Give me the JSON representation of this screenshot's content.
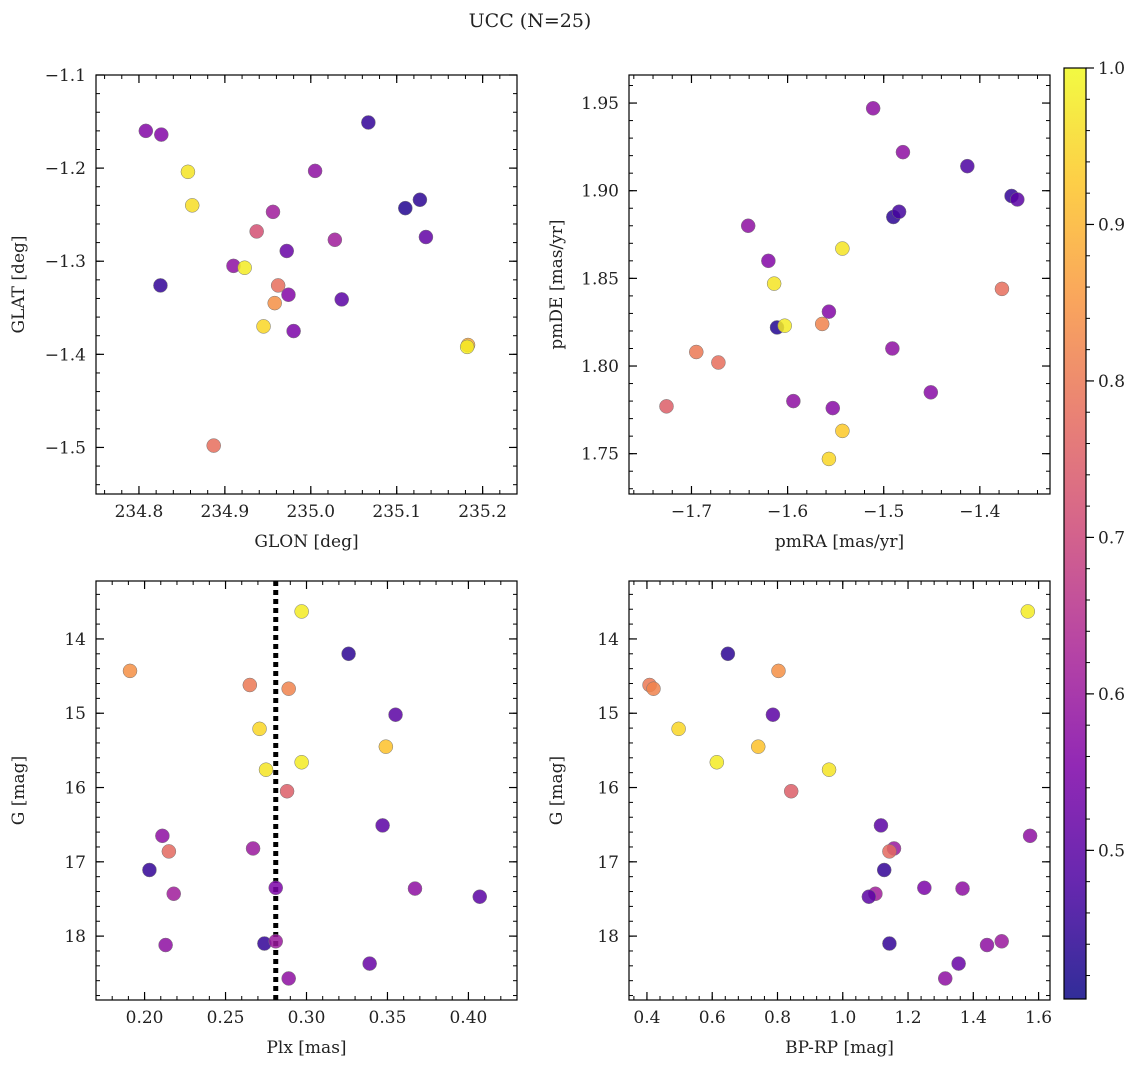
{
  "figure": {
    "title": "UCC (N=25)"
  },
  "colorbar": {
    "range": [
      0.405,
      1.0
    ],
    "ticks": [
      0.5,
      0.6,
      0.7,
      0.8,
      0.9,
      1.0
    ],
    "tick_labels": [
      "0.5",
      "0.6",
      "0.7",
      "0.8",
      "0.9",
      "1.0"
    ],
    "colormap": "plasma"
  },
  "chart_data": [
    {
      "type": "scatter",
      "id": "glon-glat",
      "xlabel": "GLON [deg]",
      "ylabel": "GLAT [deg]",
      "xlim": [
        234.75,
        235.24
      ],
      "ylim": [
        -1.55,
        -1.1
      ],
      "xticks": [
        234.8,
        234.9,
        235.0,
        235.1,
        235.2
      ],
      "xtick_labels": [
        "234.8",
        "234.9",
        "235.0",
        "235.1",
        "235.2"
      ],
      "yticks": [
        -1.1,
        -1.2,
        -1.3,
        -1.4,
        -1.5
      ],
      "ytick_labels": [
        "−1.1",
        "−1.2",
        "−1.3",
        "−1.4",
        "−1.5"
      ],
      "points": [
        {
          "x": 234.808,
          "y": -1.16,
          "c": 0.56
        },
        {
          "x": 234.826,
          "y": -1.164,
          "c": 0.56
        },
        {
          "x": 234.857,
          "y": -1.204,
          "c": 0.97
        },
        {
          "x": 234.862,
          "y": -1.24,
          "c": 0.96
        },
        {
          "x": 234.825,
          "y": -1.326,
          "c": 0.45
        },
        {
          "x": 234.91,
          "y": -1.305,
          "c": 0.58
        },
        {
          "x": 234.923,
          "y": -1.307,
          "c": 0.98
        },
        {
          "x": 234.937,
          "y": -1.268,
          "c": 0.72
        },
        {
          "x": 234.956,
          "y": -1.247,
          "c": 0.61
        },
        {
          "x": 234.962,
          "y": -1.326,
          "c": 0.78
        },
        {
          "x": 234.958,
          "y": -1.345,
          "c": 0.84
        },
        {
          "x": 234.945,
          "y": -1.37,
          "c": 0.95
        },
        {
          "x": 234.972,
          "y": -1.289,
          "c": 0.52
        },
        {
          "x": 234.974,
          "y": -1.336,
          "c": 0.56
        },
        {
          "x": 234.98,
          "y": -1.375,
          "c": 0.55
        },
        {
          "x": 235.005,
          "y": -1.203,
          "c": 0.58
        },
        {
          "x": 235.067,
          "y": -1.151,
          "c": 0.45
        },
        {
          "x": 235.028,
          "y": -1.277,
          "c": 0.61
        },
        {
          "x": 235.036,
          "y": -1.341,
          "c": 0.5
        },
        {
          "x": 235.11,
          "y": -1.243,
          "c": 0.43
        },
        {
          "x": 235.127,
          "y": -1.234,
          "c": 0.44
        },
        {
          "x": 235.134,
          "y": -1.274,
          "c": 0.51
        },
        {
          "x": 235.183,
          "y": -1.39,
          "c": 0.88
        },
        {
          "x": 235.182,
          "y": -1.392,
          "c": 0.98
        },
        {
          "x": 234.887,
          "y": -1.498,
          "c": 0.78
        }
      ]
    },
    {
      "type": "scatter",
      "id": "pmra-pmde",
      "xlabel": "pmRA [mas/yr]",
      "ylabel": "pmDE [mas/yr]",
      "xlim": [
        -1.765,
        -1.327
      ],
      "ylim": [
        1.727,
        1.966
      ],
      "xticks": [
        -1.7,
        -1.6,
        -1.5,
        -1.4
      ],
      "xtick_labels": [
        "−1.7",
        "−1.6",
        "−1.5",
        "−1.4"
      ],
      "yticks": [
        1.75,
        1.8,
        1.85,
        1.9,
        1.95
      ],
      "ytick_labels": [
        "1.75",
        "1.80",
        "1.85",
        "1.90",
        "1.95"
      ],
      "points": [
        {
          "x": -1.511,
          "y": 1.947,
          "c": 0.58
        },
        {
          "x": -1.48,
          "y": 1.922,
          "c": 0.58
        },
        {
          "x": -1.413,
          "y": 1.914,
          "c": 0.48
        },
        {
          "x": -1.367,
          "y": 1.897,
          "c": 0.45
        },
        {
          "x": -1.361,
          "y": 1.895,
          "c": 0.5
        },
        {
          "x": -1.49,
          "y": 1.885,
          "c": 0.44
        },
        {
          "x": -1.484,
          "y": 1.888,
          "c": 0.47
        },
        {
          "x": -1.641,
          "y": 1.88,
          "c": 0.58
        },
        {
          "x": -1.543,
          "y": 1.867,
          "c": 0.97
        },
        {
          "x": -1.62,
          "y": 1.86,
          "c": 0.56
        },
        {
          "x": -1.614,
          "y": 1.847,
          "c": 0.97
        },
        {
          "x": -1.377,
          "y": 1.844,
          "c": 0.78
        },
        {
          "x": -1.557,
          "y": 1.831,
          "c": 0.56
        },
        {
          "x": -1.564,
          "y": 1.824,
          "c": 0.82
        },
        {
          "x": -1.611,
          "y": 1.822,
          "c": 0.43
        },
        {
          "x": -1.603,
          "y": 1.823,
          "c": 0.98
        },
        {
          "x": -1.695,
          "y": 1.808,
          "c": 0.8
        },
        {
          "x": -1.672,
          "y": 1.802,
          "c": 0.78
        },
        {
          "x": -1.491,
          "y": 1.81,
          "c": 0.58
        },
        {
          "x": -1.594,
          "y": 1.78,
          "c": 0.58
        },
        {
          "x": -1.553,
          "y": 1.776,
          "c": 0.57
        },
        {
          "x": -1.451,
          "y": 1.785,
          "c": 0.57
        },
        {
          "x": -1.726,
          "y": 1.777,
          "c": 0.75
        },
        {
          "x": -1.543,
          "y": 1.763,
          "c": 0.93
        },
        {
          "x": -1.557,
          "y": 1.747,
          "c": 0.95
        }
      ]
    },
    {
      "type": "scatter",
      "id": "plx-g",
      "xlabel": "Plx [mas]",
      "ylabel": "G [mag]",
      "xlim": [
        0.17,
        0.43
      ],
      "ylim": [
        18.86,
        13.22
      ],
      "y_inverted": true,
      "xticks": [
        0.2,
        0.25,
        0.3,
        0.35,
        0.4
      ],
      "xtick_labels": [
        "0.20",
        "0.25",
        "0.30",
        "0.35",
        "0.40"
      ],
      "yticks": [
        14,
        15,
        16,
        17,
        18
      ],
      "ytick_labels": [
        "14",
        "15",
        "16",
        "17",
        "18"
      ],
      "vline": {
        "x": 0.281,
        "style": "dotted"
      },
      "points": [
        {
          "x": 0.297,
          "y": 13.63,
          "c": 0.98
        },
        {
          "x": 0.326,
          "y": 14.2,
          "c": 0.44
        },
        {
          "x": 0.191,
          "y": 14.43,
          "c": 0.84
        },
        {
          "x": 0.265,
          "y": 14.62,
          "c": 0.8
        },
        {
          "x": 0.289,
          "y": 14.67,
          "c": 0.82
        },
        {
          "x": 0.355,
          "y": 15.02,
          "c": 0.5
        },
        {
          "x": 0.271,
          "y": 15.21,
          "c": 0.95
        },
        {
          "x": 0.349,
          "y": 15.45,
          "c": 0.92
        },
        {
          "x": 0.297,
          "y": 15.66,
          "c": 0.98
        },
        {
          "x": 0.275,
          "y": 15.76,
          "c": 0.97
        },
        {
          "x": 0.288,
          "y": 16.05,
          "c": 0.75
        },
        {
          "x": 0.347,
          "y": 16.51,
          "c": 0.5
        },
        {
          "x": 0.211,
          "y": 16.65,
          "c": 0.58
        },
        {
          "x": 0.267,
          "y": 16.82,
          "c": 0.6
        },
        {
          "x": 0.215,
          "y": 16.86,
          "c": 0.77
        },
        {
          "x": 0.203,
          "y": 17.11,
          "c": 0.45
        },
        {
          "x": 0.281,
          "y": 17.35,
          "c": 0.55
        },
        {
          "x": 0.367,
          "y": 17.36,
          "c": 0.58
        },
        {
          "x": 0.218,
          "y": 17.43,
          "c": 0.61
        },
        {
          "x": 0.407,
          "y": 17.47,
          "c": 0.5
        },
        {
          "x": 0.213,
          "y": 18.12,
          "c": 0.58
        },
        {
          "x": 0.274,
          "y": 18.1,
          "c": 0.45
        },
        {
          "x": 0.281,
          "y": 18.07,
          "c": 0.6
        },
        {
          "x": 0.339,
          "y": 18.37,
          "c": 0.52
        },
        {
          "x": 0.289,
          "y": 18.57,
          "c": 0.58
        }
      ]
    },
    {
      "type": "scatter",
      "id": "bprp-g",
      "xlabel": "BP-RP [mag]",
      "ylabel": "G [mag]",
      "xlim": [
        0.345,
        1.635
      ],
      "ylim": [
        18.86,
        13.22
      ],
      "y_inverted": true,
      "xticks": [
        0.4,
        0.6,
        0.8,
        1.0,
        1.2,
        1.4,
        1.6
      ],
      "xtick_labels": [
        "0.4",
        "0.6",
        "0.8",
        "1.0",
        "1.2",
        "1.4",
        "1.6"
      ],
      "yticks": [
        14,
        15,
        16,
        17,
        18
      ],
      "ytick_labels": [
        "14",
        "15",
        "16",
        "17",
        "18"
      ],
      "points": [
        {
          "x": 1.567,
          "y": 13.63,
          "c": 0.98
        },
        {
          "x": 0.648,
          "y": 14.2,
          "c": 0.44
        },
        {
          "x": 0.803,
          "y": 14.43,
          "c": 0.84
        },
        {
          "x": 0.408,
          "y": 14.62,
          "c": 0.8
        },
        {
          "x": 0.42,
          "y": 14.67,
          "c": 0.82
        },
        {
          "x": 0.786,
          "y": 15.02,
          "c": 0.5
        },
        {
          "x": 0.497,
          "y": 15.21,
          "c": 0.95
        },
        {
          "x": 0.741,
          "y": 15.45,
          "c": 0.92
        },
        {
          "x": 0.614,
          "y": 15.66,
          "c": 0.98
        },
        {
          "x": 0.958,
          "y": 15.76,
          "c": 0.97
        },
        {
          "x": 0.842,
          "y": 16.05,
          "c": 0.75
        },
        {
          "x": 1.117,
          "y": 16.51,
          "c": 0.5
        },
        {
          "x": 1.574,
          "y": 16.65,
          "c": 0.58
        },
        {
          "x": 1.157,
          "y": 16.82,
          "c": 0.6
        },
        {
          "x": 1.143,
          "y": 16.86,
          "c": 0.77
        },
        {
          "x": 1.127,
          "y": 17.11,
          "c": 0.45
        },
        {
          "x": 1.25,
          "y": 17.35,
          "c": 0.55
        },
        {
          "x": 1.367,
          "y": 17.36,
          "c": 0.58
        },
        {
          "x": 1.1,
          "y": 17.43,
          "c": 0.61
        },
        {
          "x": 1.08,
          "y": 17.47,
          "c": 0.5
        },
        {
          "x": 1.442,
          "y": 18.12,
          "c": 0.58
        },
        {
          "x": 1.143,
          "y": 18.1,
          "c": 0.45
        },
        {
          "x": 1.487,
          "y": 18.07,
          "c": 0.6
        },
        {
          "x": 1.355,
          "y": 18.37,
          "c": 0.52
        },
        {
          "x": 1.314,
          "y": 18.57,
          "c": 0.58
        }
      ]
    }
  ]
}
